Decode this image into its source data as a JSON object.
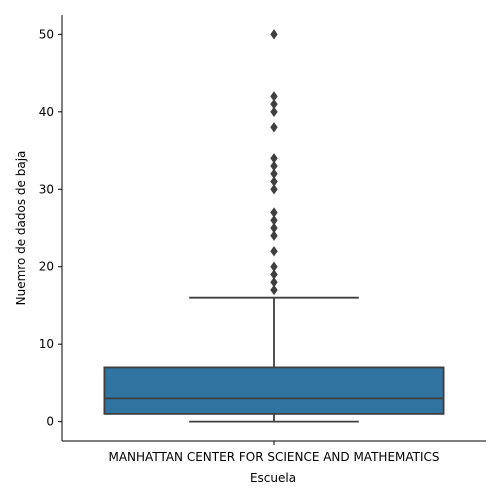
{
  "chart_data": {
    "type": "box",
    "title": "",
    "xlabel": "Escuela",
    "ylabel": "Nuemro de dados de baja",
    "categories": [
      "MANHATTAN CENTER FOR SCIENCE AND MATHEMATICS"
    ],
    "ylim": [
      -2.5,
      52.5
    ],
    "yticks": [
      0,
      10,
      20,
      30,
      40,
      50
    ],
    "grid": false,
    "legend": "none",
    "boxes": [
      {
        "category": "MANHATTAN CENTER FOR SCIENCE AND MATHEMATICS",
        "whisker_low": 0,
        "q1": 1,
        "median": 3,
        "q3": 7,
        "whisker_high": 16,
        "outliers": [
          17,
          18,
          19,
          20,
          22,
          24,
          25,
          26,
          27,
          30,
          31,
          32,
          33,
          34,
          38,
          40,
          41,
          42,
          50
        ]
      }
    ],
    "colors": {
      "box": "#3274a1",
      "line": "#3f3f3f",
      "outlier": "#3f3f3f"
    }
  }
}
